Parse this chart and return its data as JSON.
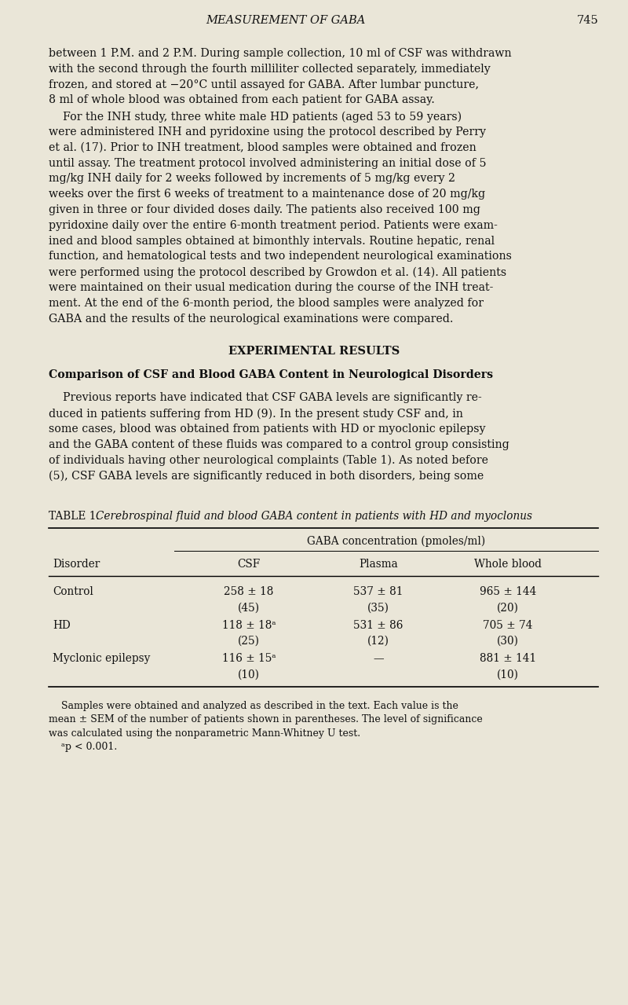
{
  "background_color": "#eae6d8",
  "page_width": 8.0,
  "page_height": 12.79,
  "header_title": "MEASUREMENT OF GABA",
  "header_page": "745",
  "body1_lines": [
    "between 1 P.M. and 2 P.M. During sample collection, 10 ml of CSF was withdrawn",
    "with the second through the fourth milliliter collected separately, immediately",
    "frozen, and stored at −20°C until assayed for GABA. After lumbar puncture,",
    "8 ml of whole blood was obtained from each patient for GABA assay."
  ],
  "body2_lines": [
    "    For the INH study, three white male HD patients (aged 53 to 59 years)",
    "were administered INH and pyridoxine using the protocol described by Perry",
    "et al. (17). Prior to INH treatment, blood samples were obtained and frozen",
    "until assay. The treatment protocol involved administering an initial dose of 5",
    "mg/kg INH daily for 2 weeks followed by increments of 5 mg/kg every 2",
    "weeks over the first 6 weeks of treatment to a maintenance dose of 20 mg/kg",
    "given in three or four divided doses daily. The patients also received 100 mg",
    "pyridoxine daily over the entire 6-month treatment period. Patients were exam-",
    "ined and blood samples obtained at bimonthly intervals. Routine hepatic, renal",
    "function, and hematological tests and two independent neurological examinations",
    "were performed using the protocol described by Growdon et al. (14). All patients",
    "were maintained on their usual medication during the course of the INH treat-",
    "ment. At the end of the 6-month period, the blood samples were analyzed for",
    "GABA and the results of the neurological examinations were compared."
  ],
  "section_heading": "EXPERIMENTAL RESULTS",
  "subsection_heading": "Comparison of CSF and Blood GABA Content in Neurological Disorders",
  "body3_lines": [
    "    Previous reports have indicated that CSF GABA levels are significantly re-",
    "duced in patients suffering from HD (9). In the present study CSF and, in",
    "some cases, blood was obtained from patients with HD or myoclonic epilepsy",
    "and the GABA content of these fluids was compared to a control group consisting",
    "of individuals having other neurological complaints (Table 1). As noted before",
    "(5), CSF GABA levels are significantly reduced in both disorders, being some"
  ],
  "table_caption_normal": "TABLE 1. ",
  "table_caption_italic": "Cerebrospinal fluid and blood GABA content in patients with HD and myoclonus",
  "table_header_main": "GABA concentration (pmoles/ml)",
  "table_col_headers": [
    "Disorder",
    "CSF",
    "Plasma",
    "Whole blood"
  ],
  "table_rows": [
    {
      "disorder": "Control",
      "csf_line1": "258 ± 18",
      "csf_line2": "(45)",
      "plasma_line1": "537 ± 81",
      "plasma_line2": "(35)",
      "wb_line1": "965 ± 144",
      "wb_line2": "(20)"
    },
    {
      "disorder": "HD",
      "csf_line1": "118 ± 18ᵃ",
      "csf_line2": "(25)",
      "plasma_line1": "531 ± 86",
      "plasma_line2": "(12)",
      "wb_line1": "705 ± 74",
      "wb_line2": "(30)"
    },
    {
      "disorder": "Myclonic epilepsy",
      "csf_line1": "116 ± 15ᵃ",
      "csf_line2": "(10)",
      "plasma_line1": "—",
      "plasma_line2": "",
      "wb_line1": "881 ± 141",
      "wb_line2": "(10)"
    }
  ],
  "footnote_lines": [
    "    Samples were obtained and analyzed as described in the text. Each value is the",
    "mean ± SEM of the number of patients shown in parentheses. The level of significance",
    "was calculated using the nonparametric Mann-Whitney U test."
  ],
  "footnote_last": "    ᵃp < 0.001."
}
